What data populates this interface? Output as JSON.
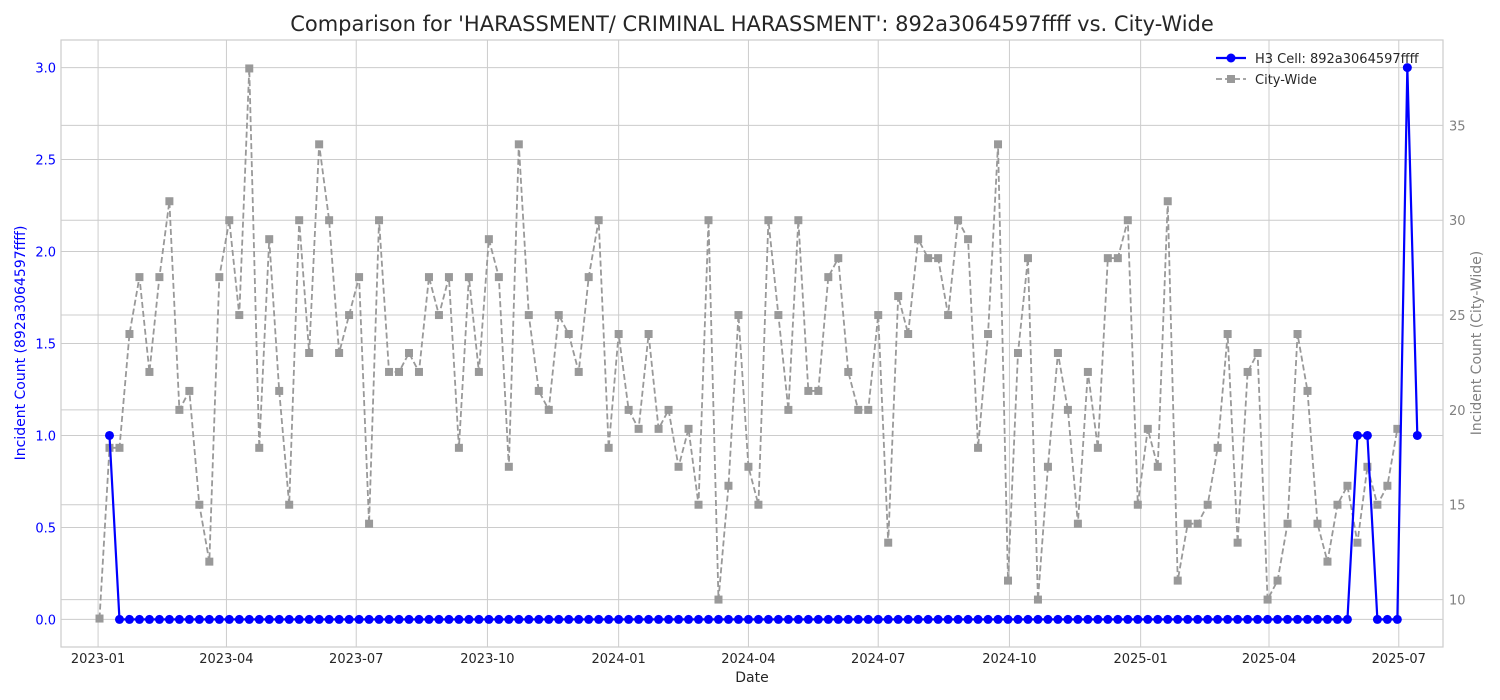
{
  "chart_data": {
    "type": "line",
    "title": "Comparison for 'HARASSMENT/ CRIMINAL HARASSMENT': 892a3064597ffff vs. City-Wide",
    "xlabel": "Date",
    "ylabel_left": "Incident Count (892a3064597ffff)",
    "ylabel_right": "Incident Count (City-Wide)",
    "x_start": "2023-01-02",
    "x_interval_days": 7,
    "x_range": [
      "2022-12-06",
      "2025-08-01"
    ],
    "x_ticks": [
      "2023-01",
      "2023-04",
      "2023-07",
      "2023-10",
      "2024-01",
      "2024-04",
      "2024-07",
      "2024-10",
      "2025-01",
      "2025-04",
      "2025-07"
    ],
    "ylim_left": [
      -0.15,
      3.15
    ],
    "yticks_left": [
      "0.0",
      "0.5",
      "1.0",
      "1.5",
      "2.0",
      "2.5",
      "3.0"
    ],
    "ylim_right": [
      7.5,
      39.5
    ],
    "yticks_right": [
      "10",
      "15",
      "20",
      "25",
      "30",
      "35"
    ],
    "grid": true,
    "legend_position": "top-right",
    "colors": {
      "h3": "#0000ff",
      "city": "#999999",
      "left_axis": "#0000ff",
      "right_axis": "#808080"
    },
    "series": [
      {
        "name": "H3 Cell: 892a3064597ffff",
        "axis": "left",
        "style": "solid-circle",
        "start_index": 1,
        "values": [
          1,
          0,
          0,
          0,
          0,
          0,
          0,
          0,
          0,
          0,
          0,
          0,
          0,
          0,
          0,
          0,
          0,
          0,
          0,
          0,
          0,
          0,
          0,
          0,
          0,
          0,
          0,
          0,
          0,
          0,
          0,
          0,
          0,
          0,
          0,
          0,
          0,
          0,
          0,
          0,
          0,
          0,
          0,
          0,
          0,
          0,
          0,
          0,
          0,
          0,
          0,
          0,
          0,
          0,
          0,
          0,
          0,
          0,
          0,
          0,
          0,
          0,
          0,
          0,
          0,
          0,
          0,
          0,
          0,
          0,
          0,
          0,
          0,
          0,
          0,
          0,
          0,
          0,
          0,
          0,
          0,
          0,
          0,
          0,
          0,
          0,
          0,
          0,
          0,
          0,
          0,
          0,
          0,
          0,
          0,
          0,
          0,
          0,
          0,
          0,
          0,
          0,
          0,
          0,
          0,
          0,
          0,
          0,
          0,
          0,
          0,
          0,
          0,
          0,
          0,
          0,
          0,
          0,
          0,
          0,
          0,
          0,
          0,
          0,
          0,
          1,
          1,
          0,
          0,
          0,
          3,
          1
        ]
      },
      {
        "name": "City-Wide",
        "axis": "right",
        "style": "dashed-square",
        "start_index": 0,
        "values": [
          9,
          18,
          18,
          24,
          27,
          22,
          27,
          31,
          20,
          21,
          15,
          12,
          27,
          30,
          25,
          38,
          18,
          29,
          21,
          15,
          30,
          23,
          34,
          30,
          23,
          25,
          27,
          14,
          30,
          22,
          22,
          23,
          22,
          27,
          25,
          27,
          18,
          27,
          22,
          29,
          27,
          17,
          34,
          25,
          21,
          20,
          25,
          24,
          22,
          27,
          30,
          18,
          24,
          20,
          19,
          24,
          19,
          20,
          17,
          19,
          15,
          30,
          10,
          16,
          25,
          17,
          15,
          30,
          25,
          20,
          30,
          21,
          21,
          27,
          28,
          22,
          20,
          20,
          25,
          13,
          26,
          24,
          29,
          28,
          28,
          25,
          30,
          29,
          18,
          24,
          34,
          11,
          23,
          28,
          10,
          17,
          23,
          20,
          14,
          22,
          18,
          28,
          28,
          30,
          15,
          19,
          17,
          31,
          11,
          14,
          14,
          15,
          18,
          24,
          13,
          22,
          23,
          10,
          11,
          14,
          24,
          21,
          14,
          12,
          15,
          16,
          13,
          17,
          15,
          16,
          19
        ]
      }
    ]
  }
}
